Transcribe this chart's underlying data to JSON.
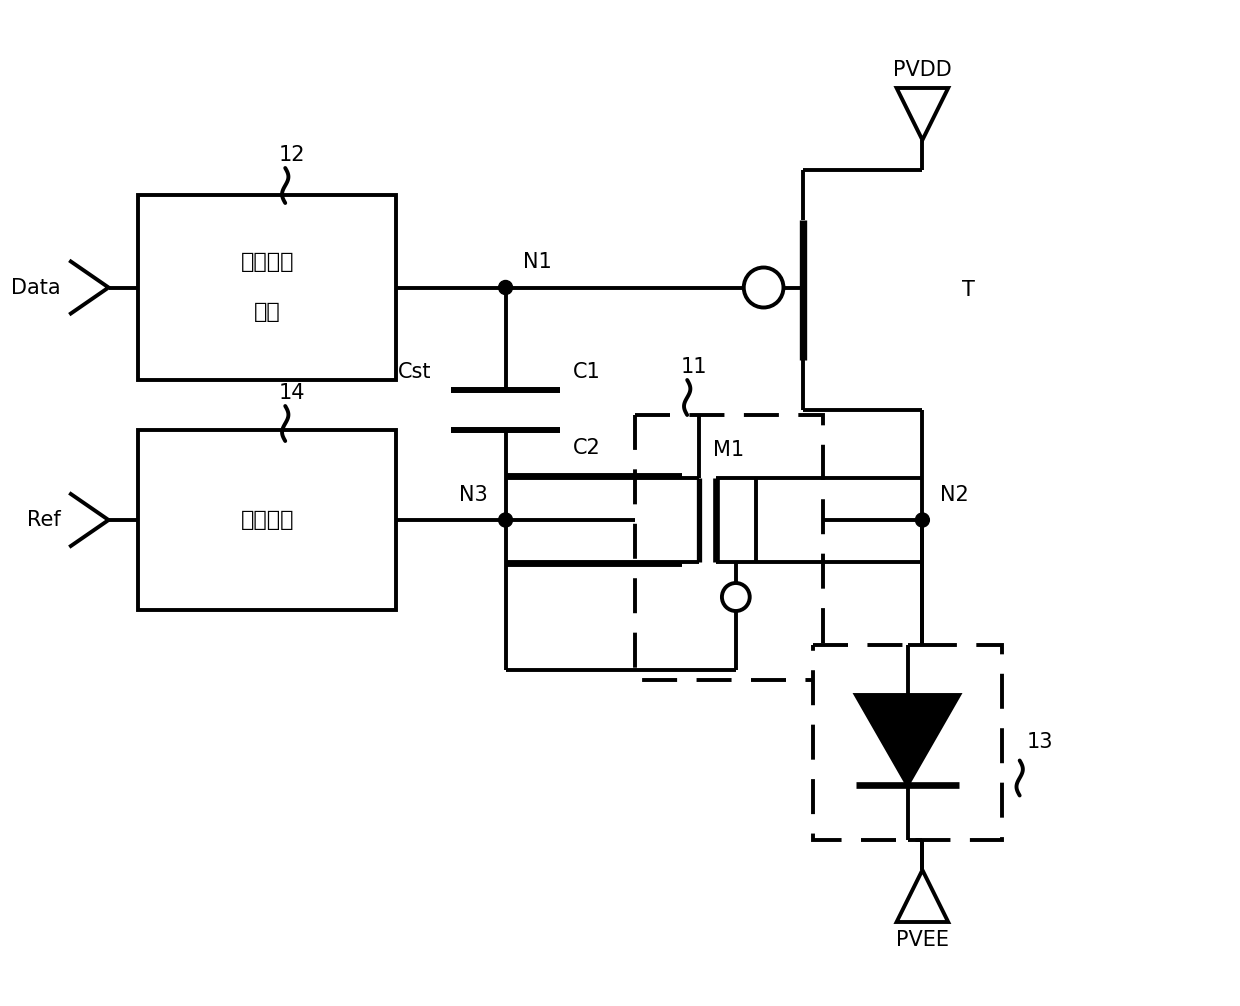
{
  "background": "#ffffff",
  "line_color": "#000000",
  "lw": 2.8,
  "fig_width": 12.4,
  "fig_height": 10.06,
  "dpi": 100,
  "box1_text1": "数据写入",
  "box1_text2": "模块",
  "box2_text": "复位模块",
  "label_Data": "Data",
  "label_Ref": "Ref",
  "label_PVDD": "PVDD",
  "label_PVEE": "PVEE",
  "label_N1": "N1",
  "label_N2": "N2",
  "label_N3": "N3",
  "label_T": "T",
  "label_Cst": "Cst",
  "label_C1": "C1",
  "label_C2": "C2",
  "label_M1": "M1",
  "label_11": "11",
  "label_12": "12",
  "label_13": "13",
  "label_14": "14",
  "fontsize_main": 16,
  "fontsize_label": 15
}
